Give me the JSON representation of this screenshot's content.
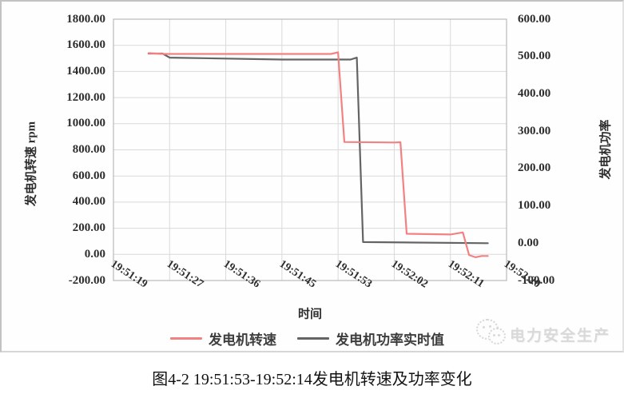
{
  "figure": {
    "x_title": "时间",
    "y_left_title": "发电机转速 rpm",
    "y_right_title": "发电机功率",
    "legend": [
      {
        "label": "发电机转速",
        "color": "#f28282"
      },
      {
        "label": "发电机功率实时值",
        "color": "#646464"
      }
    ],
    "watermark": "电力安全生产"
  },
  "caption": "图4-2 19:51:53-19:52:14发电机转速及功率变化",
  "chart_data": {
    "type": "line",
    "title": "",
    "xlabel": "时间",
    "grid": true,
    "legend_position": "bottom",
    "x_ticks": [
      "19:51:19",
      "19:51:27",
      "19:51:36",
      "19:51:45",
      "19:51:53",
      "19:52:02",
      "19:52:11",
      "19:52:20"
    ],
    "y_left": {
      "label": "发电机转速 rpm",
      "min": -200,
      "max": 1800,
      "step": 200
    },
    "y_right": {
      "label": "发电机功率",
      "min": -100,
      "max": 600,
      "step": 100
    },
    "y_left_ticks": [
      "1800.00",
      "1600.00",
      "1400.00",
      "1200.00",
      "1000.00",
      "800.00",
      "600.00",
      "400.00",
      "200.00",
      "0.00",
      "-200.00"
    ],
    "y_right_ticks": [
      "600.00",
      "500.00",
      "400.00",
      "300.00",
      "200.00",
      "100.00",
      "0.00",
      "-100.00"
    ],
    "series": [
      {
        "name": "发电机功率实时值",
        "axis": "right",
        "color": "#646464",
        "points": [
          [
            "19:51:24",
            508
          ],
          [
            "19:51:26",
            508
          ],
          [
            "19:51:27",
            497
          ],
          [
            "19:51:45",
            492
          ],
          [
            "19:51:55",
            492
          ],
          [
            "19:51:56",
            497
          ],
          [
            "19:51:57",
            3
          ],
          [
            "19:52:17",
            0
          ]
        ]
      },
      {
        "name": "发电机转速",
        "axis": "left",
        "color": "#f28282",
        "points": [
          [
            "19:51:24",
            1540
          ],
          [
            "19:51:26",
            1534
          ],
          [
            "19:51:52",
            1534
          ],
          [
            "19:51:53",
            1547
          ],
          [
            "19:51:54",
            860
          ],
          [
            "19:52:02",
            856
          ],
          [
            "19:52:03",
            858
          ],
          [
            "19:52:04",
            158
          ],
          [
            "19:52:11",
            152
          ],
          [
            "19:52:13",
            168
          ],
          [
            "19:52:14",
            -5
          ],
          [
            "19:52:15",
            -22
          ],
          [
            "19:52:16",
            -12
          ],
          [
            "19:52:17",
            -12
          ]
        ]
      }
    ]
  }
}
